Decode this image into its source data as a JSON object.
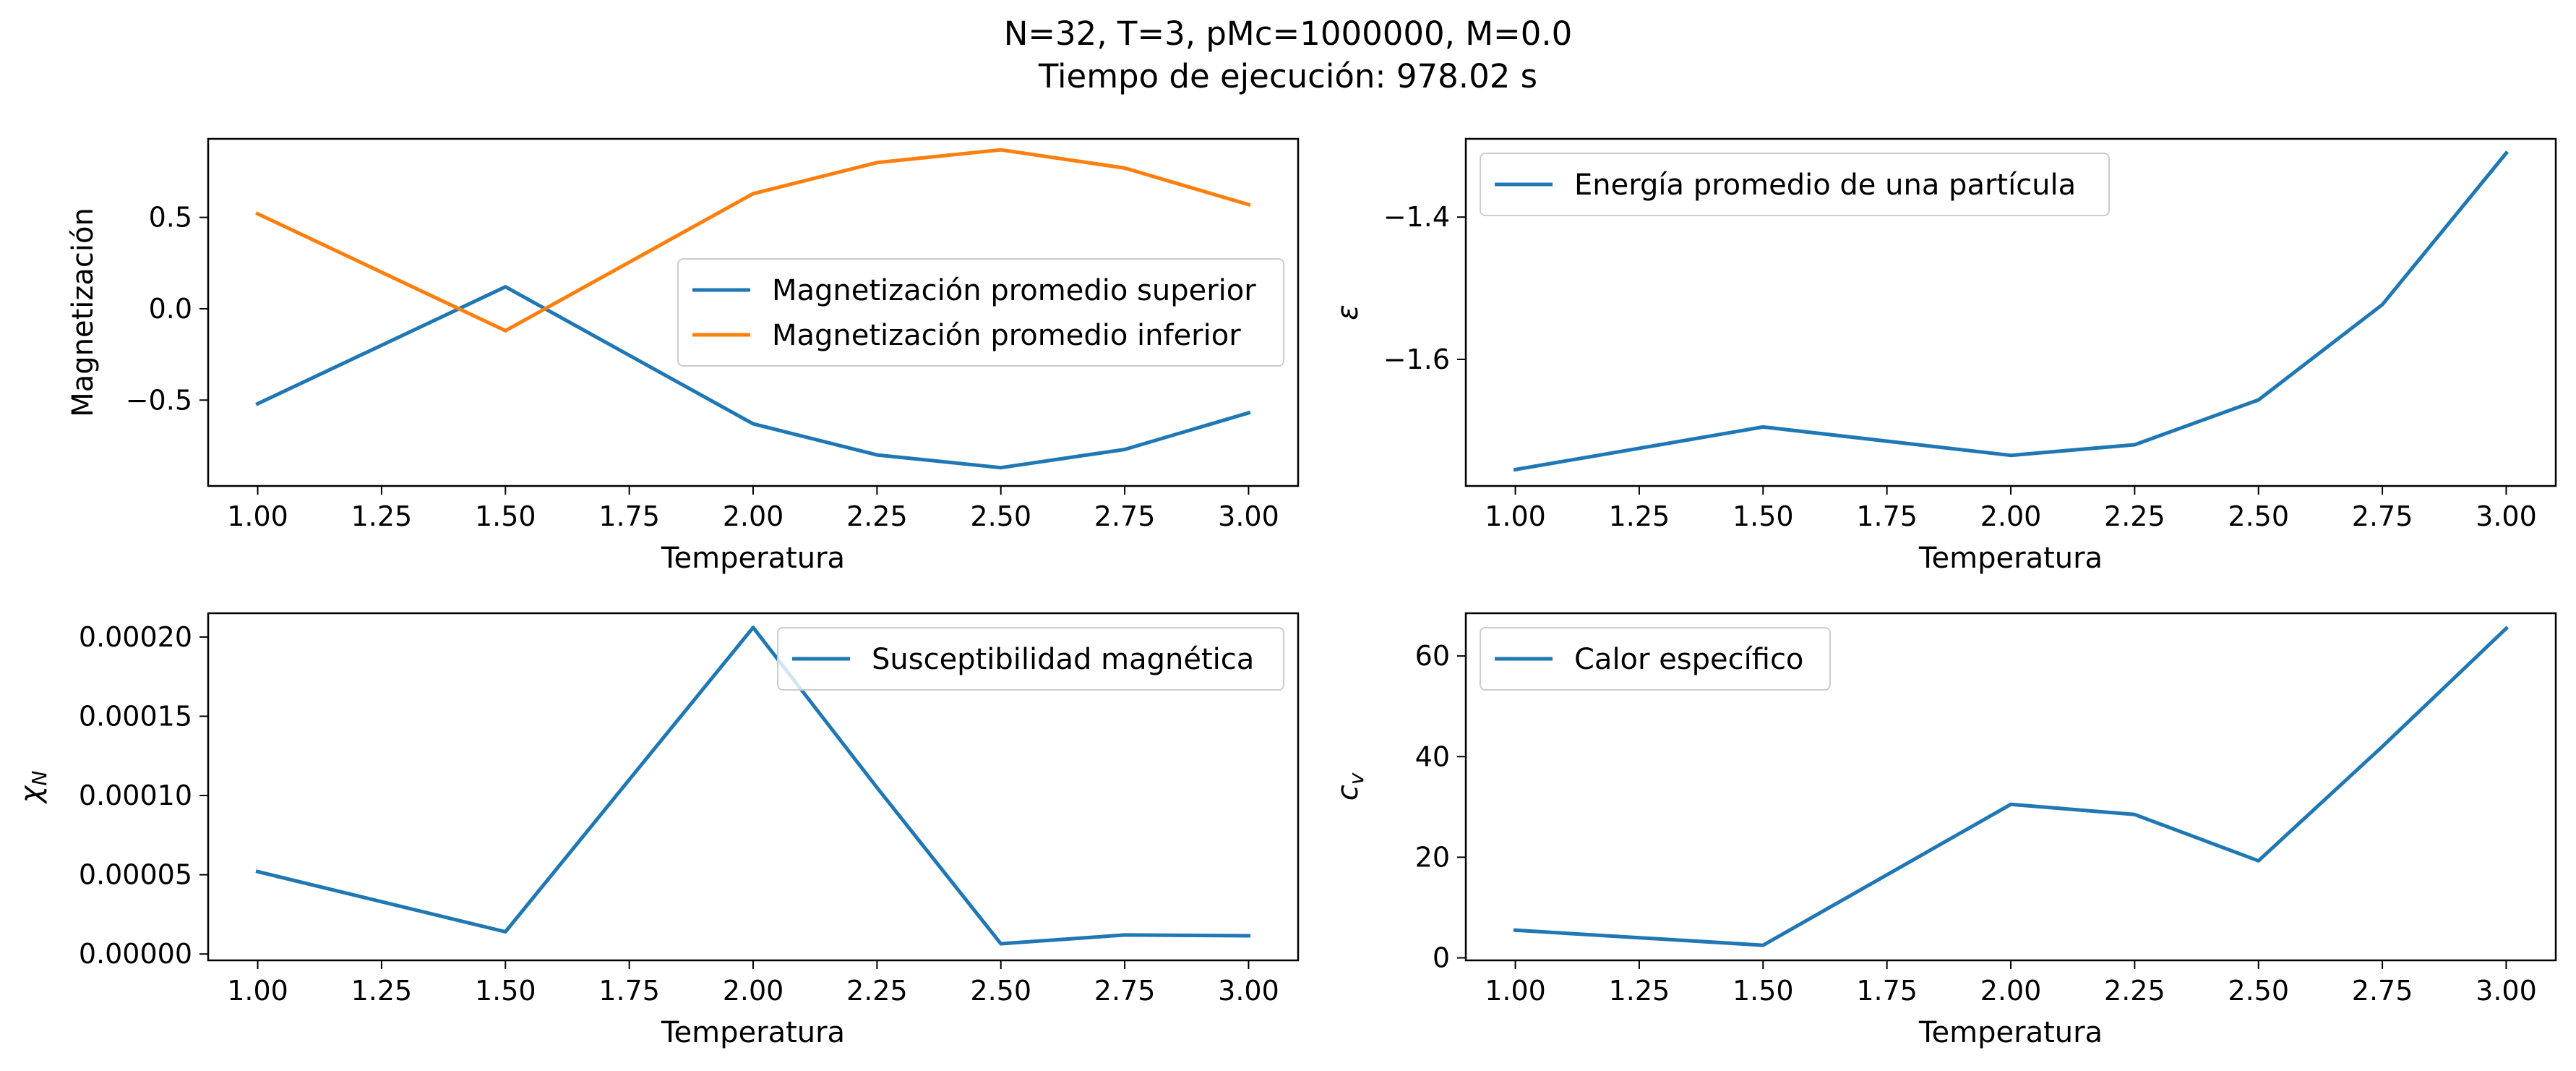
{
  "suptitle": {
    "line1": "N=32, T=3, pMc=1000000, M=0.0",
    "line2": "Tiempo de ejecución: 978.02 s"
  },
  "colors": {
    "blue": "#1f77b4",
    "orange": "#ff7f0e"
  },
  "chart_data": [
    {
      "type": "line",
      "xlabel": "Temperatura",
      "ylabel": "Magnetización",
      "x": [
        1.0,
        1.5,
        2.0,
        2.25,
        2.5,
        2.75,
        3.0
      ],
      "xlim": [
        0.9,
        3.1
      ],
      "ylim": [
        -0.97,
        0.93
      ],
      "xticks": [
        1.0,
        1.25,
        1.5,
        1.75,
        2.0,
        2.25,
        2.5,
        2.75,
        3.0
      ],
      "xtick_labels": [
        "1.00",
        "1.25",
        "1.50",
        "1.75",
        "2.00",
        "2.25",
        "2.50",
        "2.75",
        "3.00"
      ],
      "yticks": [
        -0.5,
        0.0,
        0.5
      ],
      "ytick_labels": [
        "−0.5",
        "0.0",
        "0.5"
      ],
      "legend": {
        "location": "center-right"
      },
      "series": [
        {
          "name": "Magnetización promedio superior",
          "color": "#1f77b4",
          "values": [
            -0.52,
            0.12,
            -0.63,
            -0.8,
            -0.87,
            -0.77,
            -0.57
          ]
        },
        {
          "name": "Magnetización promedio inferior",
          "color": "#ff7f0e",
          "values": [
            0.52,
            -0.12,
            0.63,
            0.8,
            0.87,
            0.77,
            0.57
          ]
        }
      ]
    },
    {
      "type": "line",
      "xlabel": "Temperatura",
      "ylabel": "ε",
      "x": [
        1.0,
        1.5,
        2.0,
        2.25,
        2.5,
        2.75,
        3.0
      ],
      "xlim": [
        0.9,
        3.1
      ],
      "ylim": [
        -1.778,
        -1.29
      ],
      "xticks": [
        1.0,
        1.25,
        1.5,
        1.75,
        2.0,
        2.25,
        2.5,
        2.75,
        3.0
      ],
      "xtick_labels": [
        "1.00",
        "1.25",
        "1.50",
        "1.75",
        "2.00",
        "2.25",
        "2.50",
        "2.75",
        "3.00"
      ],
      "yticks": [
        -1.6,
        -1.4
      ],
      "ytick_labels": [
        "−1.6",
        "−1.4"
      ],
      "legend": {
        "location": "upper-left"
      },
      "series": [
        {
          "name": "Energía promedio de una partícula",
          "color": "#1f77b4",
          "values": [
            -1.755,
            -1.695,
            -1.735,
            -1.72,
            -1.657,
            -1.523,
            -1.31
          ]
        }
      ]
    },
    {
      "type": "line",
      "xlabel": "Temperatura",
      "ylabel": "χN",
      "x": [
        1.0,
        1.5,
        2.0,
        2.25,
        2.5,
        2.75,
        3.0
      ],
      "xlim": [
        0.9,
        3.1
      ],
      "ylim": [
        -4e-06,
        0.000215
      ],
      "xticks": [
        1.0,
        1.25,
        1.5,
        1.75,
        2.0,
        2.25,
        2.5,
        2.75,
        3.0
      ],
      "xtick_labels": [
        "1.00",
        "1.25",
        "1.50",
        "1.75",
        "2.00",
        "2.25",
        "2.50",
        "2.75",
        "3.00"
      ],
      "yticks": [
        0.0,
        5e-05,
        0.0001,
        0.00015,
        0.0002
      ],
      "ytick_labels": [
        "0.00000",
        "0.00005",
        "0.00010",
        "0.00015",
        "0.00020"
      ],
      "legend": {
        "location": "upper-right"
      },
      "series": [
        {
          "name": "Susceptibilidad magnética",
          "color": "#1f77b4",
          "values": [
            5.2e-05,
            1.4e-05,
            0.000206,
            0.000105,
            6.5e-06,
            1.2e-05,
            1.15e-05
          ]
        }
      ]
    },
    {
      "type": "line",
      "xlabel": "Temperatura",
      "ylabel": "cv",
      "x": [
        1.0,
        1.5,
        2.0,
        2.25,
        2.5,
        2.75,
        3.0
      ],
      "xlim": [
        0.9,
        3.1
      ],
      "ylim": [
        -0.5,
        68.5
      ],
      "xticks": [
        1.0,
        1.25,
        1.5,
        1.75,
        2.0,
        2.25,
        2.5,
        2.75,
        3.0
      ],
      "xtick_labels": [
        "1.00",
        "1.25",
        "1.50",
        "1.75",
        "2.00",
        "2.25",
        "2.50",
        "2.75",
        "3.00"
      ],
      "yticks": [
        0,
        20,
        40,
        60
      ],
      "ytick_labels": [
        "0",
        "20",
        "40",
        "60"
      ],
      "legend": {
        "location": "upper-left"
      },
      "series": [
        {
          "name": "Calor específico",
          "color": "#1f77b4",
          "values": [
            5.5,
            2.5,
            30.5,
            28.5,
            19.3,
            42.0,
            65.5
          ]
        }
      ]
    }
  ]
}
